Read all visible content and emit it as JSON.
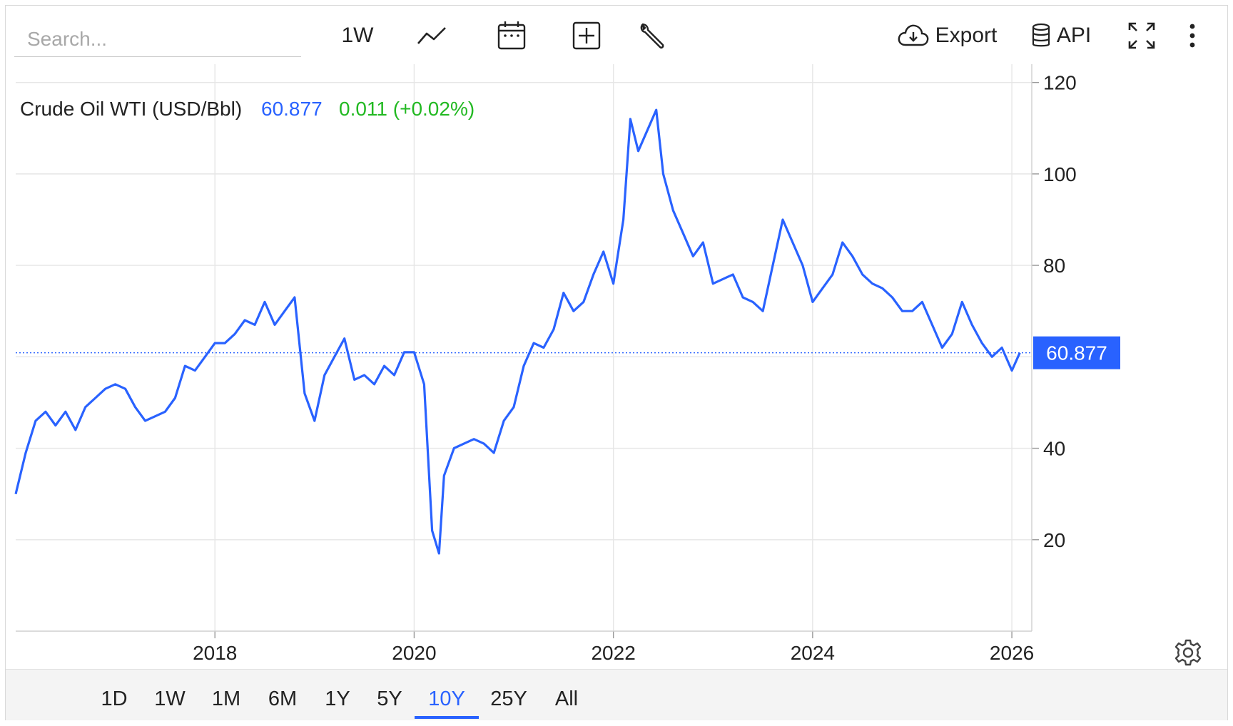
{
  "toolbar": {
    "search_placeholder": "Search...",
    "interval_label": "1W",
    "export_label": "Export",
    "api_label": "API"
  },
  "legend": {
    "name": "Crude Oil WTI (USD/Bbl)",
    "price": "60.877",
    "change": "0.011 (+0.02%)",
    "price_color": "#2962ff",
    "change_color": "#22b922"
  },
  "ranges": [
    "1D",
    "1W",
    "1M",
    "6M",
    "1Y",
    "5Y",
    "10Y",
    "25Y",
    "All"
  ],
  "active_range": "10Y",
  "chart_data": {
    "type": "line",
    "series": [
      {
        "name": "Crude Oil WTI (USD/Bbl)",
        "color": "#2962ff",
        "x": [
          2016.0,
          2016.1,
          2016.2,
          2016.3,
          2016.4,
          2016.5,
          2016.6,
          2016.7,
          2016.8,
          2016.9,
          2017.0,
          2017.1,
          2017.2,
          2017.3,
          2017.4,
          2017.5,
          2017.6,
          2017.7,
          2017.8,
          2017.9,
          2018.0,
          2018.1,
          2018.2,
          2018.3,
          2018.4,
          2018.5,
          2018.6,
          2018.7,
          2018.8,
          2018.9,
          2019.0,
          2019.1,
          2019.2,
          2019.3,
          2019.4,
          2019.5,
          2019.6,
          2019.7,
          2019.8,
          2019.9,
          2020.0,
          2020.1,
          2020.18,
          2020.25,
          2020.3,
          2020.4,
          2020.5,
          2020.6,
          2020.7,
          2020.8,
          2020.9,
          2021.0,
          2021.1,
          2021.2,
          2021.3,
          2021.4,
          2021.5,
          2021.6,
          2021.7,
          2021.8,
          2021.9,
          2022.0,
          2022.1,
          2022.17,
          2022.25,
          2022.35,
          2022.43,
          2022.5,
          2022.6,
          2022.7,
          2022.8,
          2022.9,
          2023.0,
          2023.1,
          2023.2,
          2023.3,
          2023.4,
          2023.5,
          2023.6,
          2023.7,
          2023.8,
          2023.9,
          2024.0,
          2024.1,
          2024.2,
          2024.3,
          2024.4,
          2024.5,
          2024.6,
          2024.7,
          2024.8,
          2024.9,
          2025.0,
          2025.1,
          2025.2,
          2025.3,
          2025.4,
          2025.5,
          2025.6,
          2025.7,
          2025.8,
          2025.9,
          2026.0,
          2026.08
        ],
        "y": [
          30,
          39,
          46,
          48,
          45,
          48,
          44,
          49,
          51,
          53,
          54,
          53,
          49,
          46,
          47,
          48,
          51,
          58,
          57,
          60,
          63,
          63,
          65,
          68,
          67,
          72,
          67,
          70,
          73,
          52,
          46,
          56,
          60,
          64,
          55,
          56,
          54,
          58,
          56,
          61,
          61,
          54,
          22,
          17,
          34,
          40,
          41,
          42,
          41,
          39,
          46,
          49,
          58,
          63,
          62,
          66,
          74,
          70,
          72,
          78,
          83,
          76,
          90,
          112,
          105,
          110,
          114,
          100,
          92,
          87,
          82,
          85,
          76,
          77,
          78,
          73,
          72,
          70,
          80,
          90,
          85,
          80,
          72,
          75,
          78,
          85,
          82,
          78,
          76,
          75,
          73,
          70,
          70,
          72,
          67,
          62,
          65,
          72,
          67,
          63,
          60,
          62,
          57,
          60.877
        ]
      }
    ],
    "x_ticks": [
      "2018",
      "2020",
      "2022",
      "2024",
      "2026"
    ],
    "y_ticks": [
      20,
      40,
      80,
      100,
      120
    ],
    "xlim": [
      2016.0,
      2026.2
    ],
    "ylim": [
      0,
      124
    ],
    "last_value": "60.877",
    "grid": true,
    "legend": "top-left"
  }
}
